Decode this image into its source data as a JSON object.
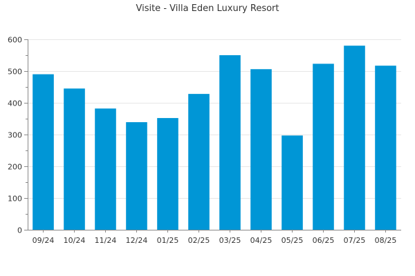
{
  "chart_data": {
    "type": "bar",
    "title": "Visite - Villa Eden Luxury Resort",
    "xlabel": "",
    "ylabel": "",
    "categories": [
      "09/24",
      "10/24",
      "11/24",
      "12/24",
      "01/25",
      "02/25",
      "03/25",
      "04/25",
      "05/25",
      "06/25",
      "07/25",
      "08/25"
    ],
    "values": [
      490,
      445,
      382,
      339,
      352,
      428,
      550,
      506,
      297,
      523,
      580,
      517
    ],
    "ylim": [
      0,
      600
    ],
    "yticks": [
      0,
      100,
      200,
      300,
      400,
      500,
      600
    ],
    "grid": true,
    "bar_color": "#0096d6"
  }
}
